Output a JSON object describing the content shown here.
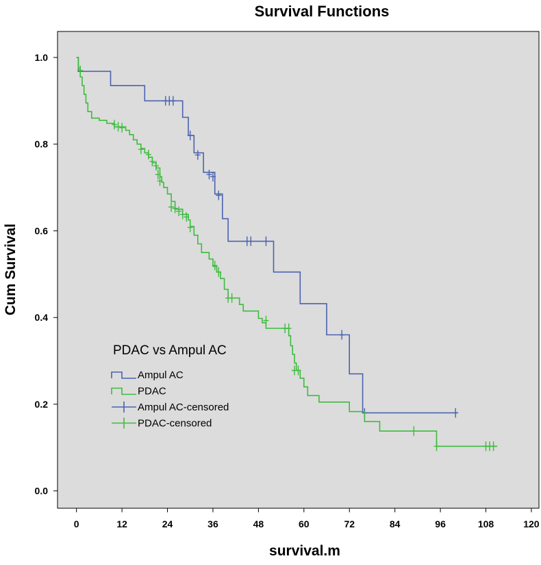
{
  "chart_data": {
    "type": "line",
    "subtype": "kaplan-meier-step",
    "title": "Survival Functions",
    "xlabel": "survival.m",
    "ylabel": "Cum Survival",
    "xlim": [
      -5,
      122
    ],
    "ylim": [
      -0.04,
      1.06
    ],
    "xticks": [
      0,
      12,
      24,
      36,
      48,
      60,
      72,
      84,
      96,
      108,
      120
    ],
    "yticks": [
      0.0,
      0.2,
      0.4,
      0.6,
      0.8,
      1.0
    ],
    "ytick_labels": [
      "0.0",
      "0.2",
      "0.4",
      "0.6",
      "0.8",
      "1.0"
    ],
    "grid": false,
    "background": "#dcdcdc",
    "legend": {
      "title": "PDAC vs Ampul AC",
      "position": "middle-left",
      "entries": [
        {
          "label": "Ampul AC",
          "kind": "line",
          "color": "#4a62b0"
        },
        {
          "label": "PDAC",
          "kind": "line",
          "color": "#3dbb3d"
        },
        {
          "label": "Ampul AC-censored",
          "kind": "censor",
          "color": "#4a62b0"
        },
        {
          "label": "PDAC-censored",
          "kind": "censor",
          "color": "#3dbb3d"
        }
      ]
    },
    "series": [
      {
        "name": "Ampul AC",
        "color": "#4a62b0",
        "steps": [
          [
            0,
            1.0
          ],
          [
            0.5,
            0.968
          ],
          [
            9,
            0.935
          ],
          [
            18,
            0.9
          ],
          [
            28,
            0.862
          ],
          [
            29.5,
            0.82
          ],
          [
            31,
            0.78
          ],
          [
            33.5,
            0.735
          ],
          [
            36.5,
            0.685
          ],
          [
            38.5,
            0.628
          ],
          [
            40,
            0.576
          ],
          [
            52,
            0.505
          ],
          [
            59,
            0.432
          ],
          [
            66,
            0.36
          ],
          [
            72,
            0.27
          ],
          [
            75.5,
            0.18
          ],
          [
            100.5,
            0.18
          ]
        ],
        "censored": [
          [
            1,
            0.968
          ],
          [
            23.5,
            0.9
          ],
          [
            24.5,
            0.9
          ],
          [
            25.5,
            0.9
          ],
          [
            30,
            0.82
          ],
          [
            32,
            0.775
          ],
          [
            35,
            0.73
          ],
          [
            36,
            0.725
          ],
          [
            37.5,
            0.682
          ],
          [
            45,
            0.576
          ],
          [
            46,
            0.576
          ],
          [
            50,
            0.576
          ],
          [
            70,
            0.36
          ],
          [
            76,
            0.18
          ],
          [
            100,
            0.18
          ]
        ]
      },
      {
        "name": "PDAC",
        "color": "#3dbb3d",
        "steps": [
          [
            0,
            1.0
          ],
          [
            0.5,
            0.975
          ],
          [
            1,
            0.955
          ],
          [
            1.5,
            0.935
          ],
          [
            2,
            0.915
          ],
          [
            2.5,
            0.895
          ],
          [
            3,
            0.875
          ],
          [
            4,
            0.86
          ],
          [
            6,
            0.855
          ],
          [
            8,
            0.848
          ],
          [
            10,
            0.84
          ],
          [
            13,
            0.832
          ],
          [
            14,
            0.822
          ],
          [
            15,
            0.81
          ],
          [
            16,
            0.8
          ],
          [
            17,
            0.79
          ],
          [
            18,
            0.78
          ],
          [
            19,
            0.77
          ],
          [
            20,
            0.757
          ],
          [
            21,
            0.745
          ],
          [
            22,
            0.725
          ],
          [
            22.5,
            0.712
          ],
          [
            23,
            0.7
          ],
          [
            24,
            0.685
          ],
          [
            25,
            0.668
          ],
          [
            26,
            0.65
          ],
          [
            28,
            0.638
          ],
          [
            29.5,
            0.625
          ],
          [
            30,
            0.61
          ],
          [
            31,
            0.59
          ],
          [
            32,
            0.57
          ],
          [
            33,
            0.55
          ],
          [
            35,
            0.535
          ],
          [
            36,
            0.518
          ],
          [
            37,
            0.505
          ],
          [
            38,
            0.49
          ],
          [
            39,
            0.465
          ],
          [
            40,
            0.445
          ],
          [
            43,
            0.43
          ],
          [
            44,
            0.415
          ],
          [
            48,
            0.398
          ],
          [
            49,
            0.388
          ],
          [
            50,
            0.375
          ],
          [
            56,
            0.358
          ],
          [
            56.5,
            0.335
          ],
          [
            57,
            0.315
          ],
          [
            57.5,
            0.295
          ],
          [
            58,
            0.278
          ],
          [
            59,
            0.26
          ],
          [
            60,
            0.24
          ],
          [
            61,
            0.22
          ],
          [
            64,
            0.205
          ],
          [
            72,
            0.183
          ],
          [
            76,
            0.16
          ],
          [
            80,
            0.138
          ],
          [
            95,
            0.103
          ],
          [
            111,
            0.103
          ]
        ],
        "censored": [
          [
            1,
            0.97
          ],
          [
            10,
            0.845
          ],
          [
            11,
            0.84
          ],
          [
            12,
            0.838
          ],
          [
            17,
            0.788
          ],
          [
            19,
            0.776
          ],
          [
            20,
            0.76
          ],
          [
            21,
            0.75
          ],
          [
            21.5,
            0.73
          ],
          [
            22,
            0.715
          ],
          [
            25,
            0.655
          ],
          [
            26,
            0.652
          ],
          [
            27,
            0.645
          ],
          [
            28,
            0.638
          ],
          [
            29,
            0.632
          ],
          [
            30,
            0.608
          ],
          [
            36.5,
            0.52
          ],
          [
            37.5,
            0.505
          ],
          [
            40,
            0.445
          ],
          [
            41,
            0.445
          ],
          [
            50,
            0.393
          ],
          [
            55,
            0.375
          ],
          [
            56,
            0.375
          ],
          [
            57.5,
            0.278
          ],
          [
            58.5,
            0.278
          ],
          [
            89,
            0.138
          ],
          [
            95,
            0.103
          ],
          [
            108,
            0.103
          ],
          [
            109,
            0.103
          ],
          [
            110,
            0.103
          ]
        ]
      }
    ]
  }
}
